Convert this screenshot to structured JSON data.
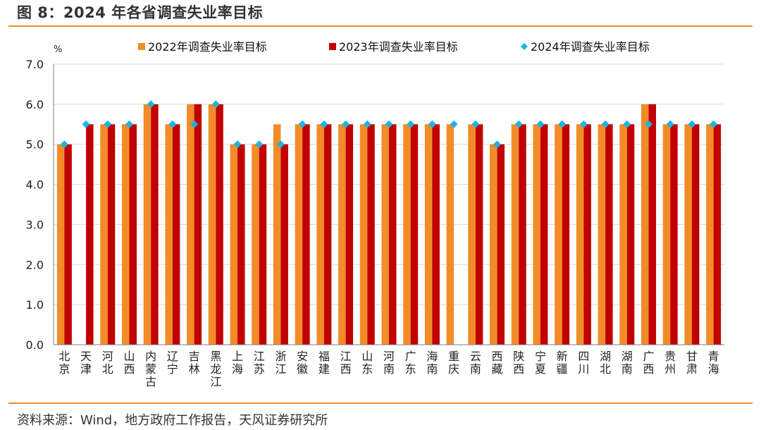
{
  "header": {
    "title": "图 8：2024 年各省调查失业率目标"
  },
  "footer": {
    "source": "资料来源：Wind，地方政府工作报告，天风证券研究所"
  },
  "colors": {
    "s2022": "#f28c28",
    "s2023": "#c00000",
    "s2024": "#1fb3e0",
    "accent": "#f28c28"
  },
  "chart_data": {
    "type": "bar",
    "title": "",
    "ylabel": "%",
    "ylim": [
      0,
      7
    ],
    "yticks": [
      "0.0",
      "1.0",
      "2.0",
      "3.0",
      "4.0",
      "5.0",
      "6.0",
      "7.0"
    ],
    "grid": true,
    "legend": "top",
    "categories": [
      "北京",
      "天津",
      "河北",
      "山西",
      "内蒙古",
      "辽宁",
      "吉林",
      "黑龙江",
      "上海",
      "江苏",
      "浙江",
      "安徽",
      "福建",
      "江西",
      "山东",
      "河南",
      "广东",
      "海南",
      "重庆",
      "云南",
      "西藏",
      "陕西",
      "宁夏",
      "新疆",
      "四川",
      "湖北",
      "湖南",
      "广西",
      "贵州",
      "甘肃",
      "青海"
    ],
    "series": [
      {
        "name": "2022年调查失业率目标",
        "type": "bar",
        "values": [
          5.0,
          null,
          5.5,
          5.5,
          6.0,
          5.5,
          6.0,
          6.0,
          5.0,
          5.0,
          5.5,
          5.5,
          5.5,
          5.5,
          5.5,
          5.5,
          5.5,
          5.5,
          5.5,
          5.5,
          5.0,
          5.5,
          5.5,
          5.5,
          5.5,
          5.5,
          5.5,
          6.0,
          5.5,
          5.5,
          5.5
        ]
      },
      {
        "name": "2023年调查失业率目标",
        "type": "bar",
        "values": [
          5.0,
          5.5,
          5.5,
          5.5,
          6.0,
          5.5,
          6.0,
          6.0,
          5.0,
          5.0,
          5.0,
          5.5,
          5.5,
          5.5,
          5.5,
          5.5,
          5.5,
          5.5,
          null,
          5.5,
          5.0,
          5.5,
          5.5,
          5.5,
          5.5,
          5.5,
          5.5,
          6.0,
          5.5,
          5.5,
          5.5
        ]
      },
      {
        "name": "2024年调查失业率目标",
        "type": "marker",
        "values": [
          5.0,
          5.5,
          5.5,
          5.5,
          6.0,
          5.5,
          5.5,
          6.0,
          5.0,
          5.0,
          5.0,
          5.5,
          5.5,
          5.5,
          5.5,
          5.5,
          5.5,
          5.5,
          5.5,
          5.5,
          5.0,
          5.5,
          5.5,
          5.5,
          5.5,
          5.5,
          5.5,
          5.5,
          5.5,
          5.5,
          5.5
        ]
      }
    ]
  }
}
